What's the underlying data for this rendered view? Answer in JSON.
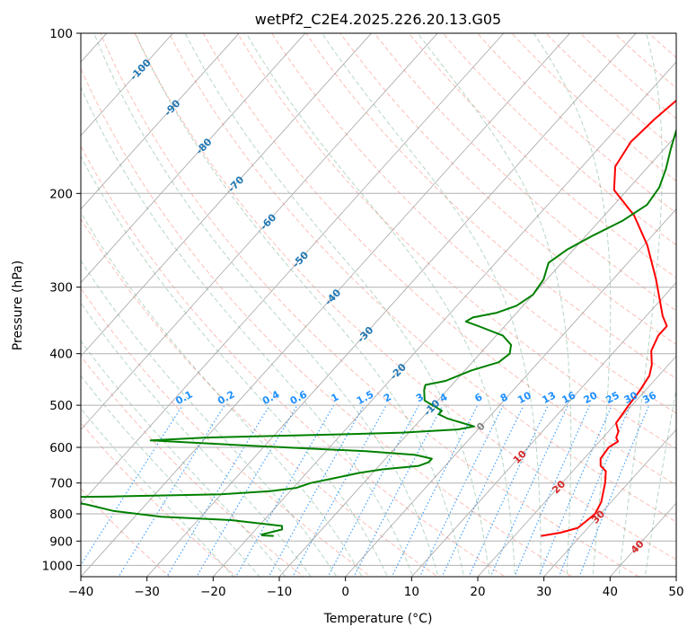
{
  "chart_data": {
    "type": "line",
    "title": "wetPf2_C2E4.2025.226.20.13.G05",
    "xlabel": "Temperature (°C)",
    "ylabel": "Pressure (hPa)",
    "xlim": [
      -40,
      50
    ],
    "ylim": [
      1050,
      100
    ],
    "y_scale": "log",
    "x_ticks": [
      "−40",
      "−30",
      "−20",
      "−10",
      "0",
      "10",
      "20",
      "30",
      "40",
      "50"
    ],
    "y_ticks": [
      "100",
      "200",
      "300",
      "400",
      "500",
      "600",
      "700",
      "800",
      "900",
      "1000"
    ],
    "grid": true,
    "colors": {
      "temperature": "#ff0000",
      "dewpoint": "#008000",
      "dry_adiabat": "#fa8072",
      "moist_adiabat": "#2e8b57",
      "mixing_ratio": "#1e90ff",
      "isotherm": "#808080",
      "isotherm_label_cold": "#1f77b4",
      "isotherm_label_warm": "#d62728",
      "isotherm_zero_label": "#808080"
    },
    "isotherm_labels_cold": [
      "-100",
      "-90",
      "-80",
      "-70",
      "-60",
      "-50",
      "-40",
      "-30",
      "-20",
      "-10"
    ],
    "isotherm_labels_warm": [
      "0",
      "10",
      "20",
      "30",
      "40"
    ],
    "mixing_ratio_labels": [
      "0.1",
      "0.2",
      "0.4",
      "0.6",
      "1",
      "1.5",
      "2",
      "3",
      "4",
      "6",
      "8",
      "10",
      "13",
      "16",
      "20",
      "25",
      "30",
      "36"
    ],
    "series": [
      {
        "name": "",
        "role": "temperature",
        "points": [
          [
            24,
            880
          ],
          [
            26.5,
            868
          ],
          [
            28.5,
            850
          ],
          [
            29.2,
            800
          ],
          [
            28.5,
            760
          ],
          [
            26.5,
            700
          ],
          [
            25,
            665
          ],
          [
            23.5,
            650
          ],
          [
            22.5,
            630
          ],
          [
            22.2,
            600
          ],
          [
            22.8,
            585
          ],
          [
            22,
            575
          ],
          [
            21.5,
            560
          ],
          [
            20,
            540
          ],
          [
            19.5,
            500
          ],
          [
            19.2,
            470
          ],
          [
            18.6,
            440
          ],
          [
            17.5,
            420
          ],
          [
            15.5,
            395
          ],
          [
            14.5,
            370
          ],
          [
            14.5,
            355
          ],
          [
            12.5,
            340
          ],
          [
            6.5,
            290
          ],
          [
            0.5,
            250
          ],
          [
            -5.5,
            220
          ],
          [
            -12,
            197
          ],
          [
            -15,
            178
          ],
          [
            -16,
            160
          ],
          [
            -15.5,
            145
          ],
          [
            -14.5,
            130
          ],
          [
            -15.5,
            120
          ],
          [
            -15,
            110
          ],
          [
            -13.5,
            100
          ]
        ]
      },
      {
        "name": "",
        "role": "dewpoint",
        "points": [
          [
            -16.4,
            880
          ],
          [
            -18.2,
            878
          ],
          [
            -18.4,
            875
          ],
          [
            -16,
            856
          ],
          [
            -16.5,
            843
          ],
          [
            -25,
            822
          ],
          [
            -36,
            810
          ],
          [
            -44,
            790
          ],
          [
            -49,
            768
          ],
          [
            -52,
            758
          ],
          [
            -54.5,
            752
          ],
          [
            -57,
            745
          ],
          [
            -46,
            742
          ],
          [
            -30,
            735
          ],
          [
            -23,
            725
          ],
          [
            -19.5,
            715
          ],
          [
            -18,
            700
          ],
          [
            -15,
            685
          ],
          [
            -12,
            670
          ],
          [
            -9,
            660
          ],
          [
            -4,
            650
          ],
          [
            -3,
            640
          ],
          [
            -3,
            630
          ],
          [
            -6,
            620
          ],
          [
            -14,
            610
          ],
          [
            -33,
            595
          ],
          [
            -48,
            582
          ],
          [
            -40,
            575
          ],
          [
            -27,
            570
          ],
          [
            -20,
            567
          ],
          [
            -11,
            563
          ],
          [
            -3,
            555
          ],
          [
            -1,
            548
          ],
          [
            -6,
            530
          ],
          [
            -8,
            520
          ],
          [
            -8,
            512
          ],
          [
            -12,
            490
          ],
          [
            -13.5,
            468
          ],
          [
            -14,
            458
          ],
          [
            -11.5,
            450
          ],
          [
            -9,
            430
          ],
          [
            -6,
            415
          ],
          [
            -5.5,
            400
          ],
          [
            -6.5,
            385
          ],
          [
            -9,
            370
          ],
          [
            -14,
            355
          ],
          [
            -16.5,
            348
          ],
          [
            -16,
            342
          ],
          [
            -13,
            335
          ],
          [
            -11,
            325
          ],
          [
            -10,
            310
          ],
          [
            -10.5,
            290
          ],
          [
            -12,
            270
          ],
          [
            -11,
            255
          ],
          [
            -9,
            240
          ],
          [
            -6.5,
            225
          ],
          [
            -5,
            210
          ],
          [
            -5.5,
            195
          ],
          [
            -7,
            180
          ],
          [
            -9,
            165
          ],
          [
            -11,
            150
          ],
          [
            -11.5,
            140
          ],
          [
            -10.5,
            130
          ],
          [
            -8.5,
            120
          ],
          [
            -6.5,
            110
          ],
          [
            -5,
            100
          ]
        ]
      }
    ]
  }
}
